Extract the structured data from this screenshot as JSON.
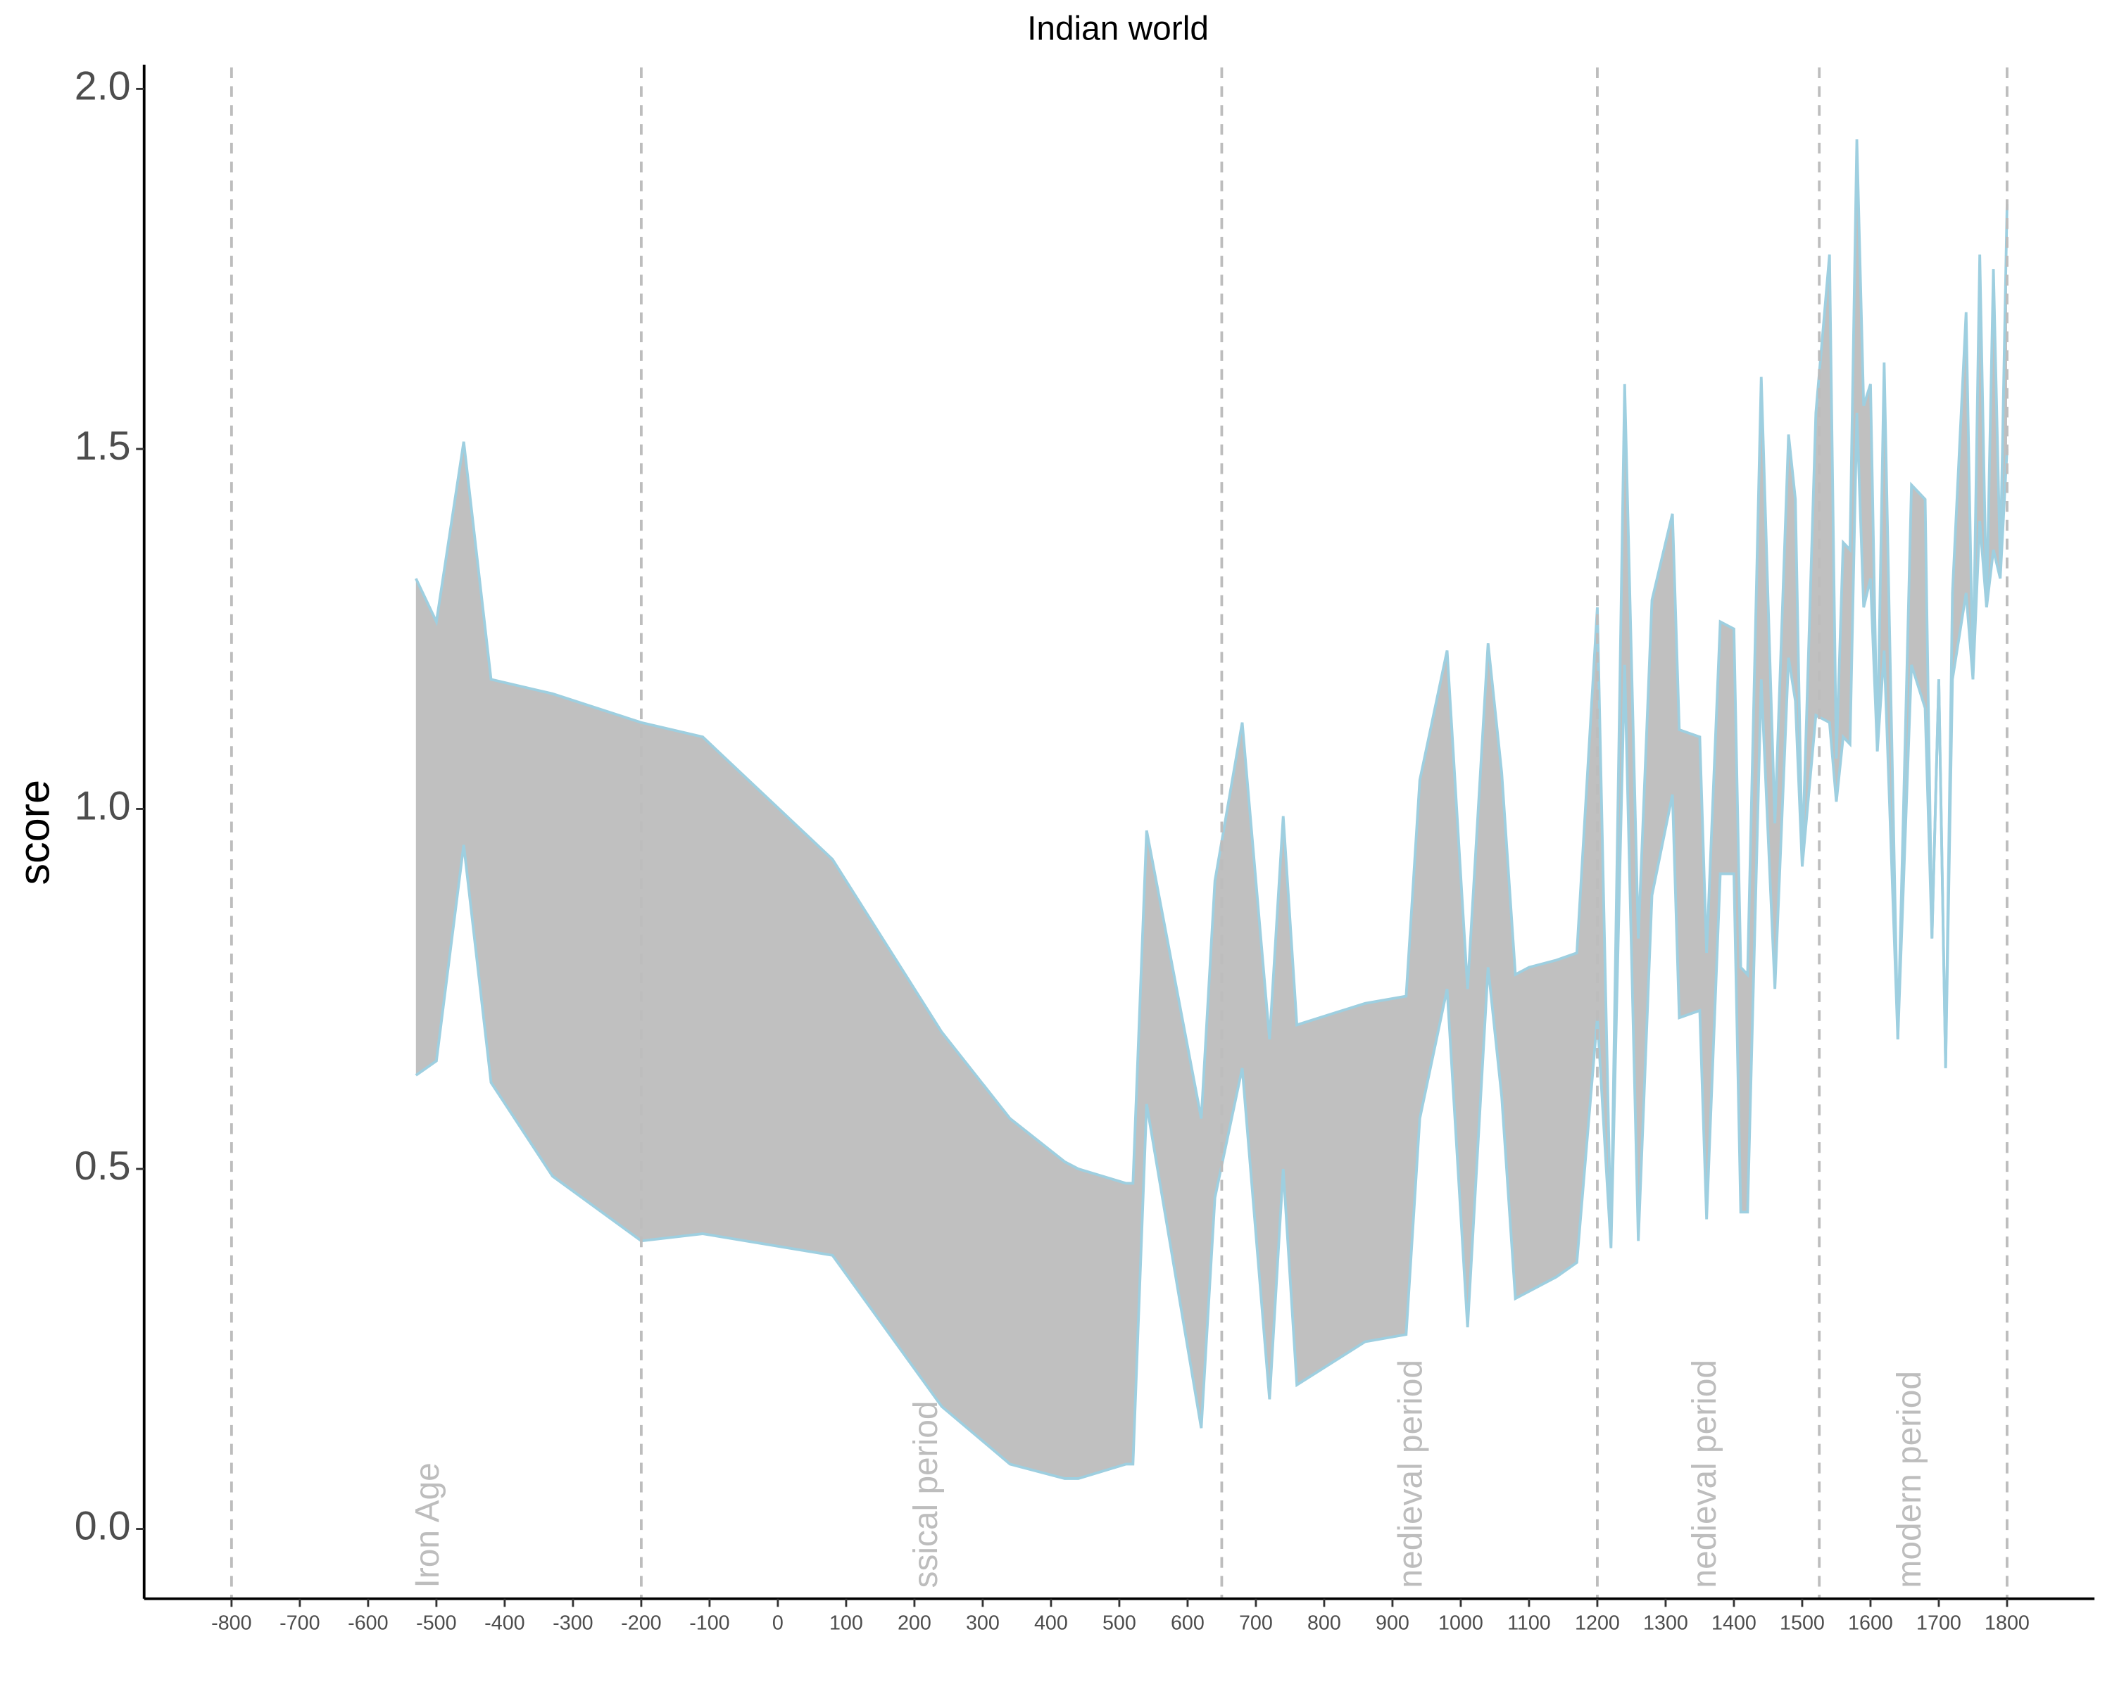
{
  "chart_data": {
    "type": "ribbon",
    "title": "Indian world",
    "y_label": "score",
    "fill": "#c0c0c0",
    "stroke": "#9ecfe0",
    "x": [
      -530,
      -500,
      -460,
      -420,
      -330,
      -200,
      -110,
      80,
      240,
      340,
      420,
      440,
      510,
      520,
      540,
      620,
      640,
      680,
      720,
      740,
      760,
      860,
      920,
      940,
      980,
      1010,
      1040,
      1060,
      1080,
      1100,
      1140,
      1170,
      1200,
      1220,
      1240,
      1260,
      1280,
      1310,
      1320,
      1350,
      1360,
      1380,
      1400,
      1410,
      1420,
      1440,
      1460,
      1480,
      1490,
      1500,
      1520,
      1540,
      1550,
      1560,
      1570,
      1580,
      1590,
      1600,
      1610,
      1620,
      1640,
      1660,
      1680,
      1690,
      1700,
      1710,
      1720,
      1740,
      1750,
      1760,
      1770,
      1780,
      1790,
      1800
    ],
    "upper": [
      1.32,
      1.26,
      1.51,
      1.18,
      1.16,
      1.12,
      1.1,
      0.93,
      0.69,
      0.57,
      0.51,
      0.5,
      0.48,
      0.48,
      0.97,
      0.57,
      0.9,
      1.12,
      0.68,
      0.99,
      0.7,
      0.73,
      0.74,
      1.04,
      1.22,
      0.75,
      1.23,
      1.05,
      0.77,
      0.78,
      0.79,
      0.8,
      1.28,
      0.4,
      1.59,
      0.82,
      1.29,
      1.41,
      1.11,
      1.1,
      0.8,
      1.26,
      1.25,
      0.78,
      0.77,
      1.6,
      0.98,
      1.52,
      1.43,
      0.93,
      1.55,
      1.77,
      1.07,
      1.37,
      1.36,
      1.93,
      1.56,
      1.59,
      1.08,
      1.62,
      0.68,
      1.45,
      1.43,
      0.82,
      1.18,
      0.64,
      1.3,
      1.69,
      1.18,
      1.77,
      1.28,
      1.75,
      1.34,
      1.84
    ],
    "lower": [
      0.63,
      0.65,
      0.95,
      0.62,
      0.49,
      0.4,
      0.41,
      0.38,
      0.17,
      0.09,
      0.07,
      0.07,
      0.09,
      0.09,
      0.59,
      0.14,
      0.46,
      0.64,
      0.18,
      0.5,
      0.2,
      0.26,
      0.27,
      0.57,
      0.75,
      0.28,
      0.78,
      0.6,
      0.32,
      0.33,
      0.35,
      0.37,
      0.71,
      0.39,
      1.2,
      0.4,
      0.88,
      1.02,
      0.71,
      0.72,
      0.43,
      0.91,
      0.91,
      0.44,
      0.44,
      1.18,
      0.75,
      1.21,
      1.15,
      0.92,
      1.13,
      1.12,
      1.01,
      1.1,
      1.09,
      1.55,
      1.28,
      1.32,
      1.08,
      1.22,
      0.68,
      1.2,
      1.14,
      0.82,
      1.18,
      0.64,
      1.18,
      1.3,
      1.18,
      1.4,
      1.28,
      1.36,
      1.32,
      1.5
    ],
    "xlim": [
      -928,
      1928
    ],
    "ylim": [
      -0.097,
      2.03
    ],
    "xticks": [
      -800,
      -700,
      -600,
      -500,
      -400,
      -300,
      -200,
      -100,
      0,
      100,
      200,
      300,
      400,
      500,
      600,
      700,
      800,
      900,
      1000,
      1100,
      1200,
      1300,
      1400,
      1500,
      1600,
      1700,
      1800
    ],
    "yticks": [
      {
        "value": 0,
        "label": "0.0"
      },
      0.5,
      {
        "value": 1,
        "label": "1.0"
      },
      1.5,
      {
        "value": 2,
        "label": "2.0"
      }
    ],
    "vlines": [
      -800,
      -200,
      650,
      1200,
      1525,
      1800
    ],
    "period_labels": [
      {
        "label": "Iron Age",
        "x": -510
      },
      {
        "label": "ssical period",
        "x": 220
      },
      {
        "label": "nedieval period",
        "x": 930
      },
      {
        "label": "nedieval period",
        "x": 1360
      },
      {
        "label": "modern period",
        "x": 1660
      }
    ]
  }
}
